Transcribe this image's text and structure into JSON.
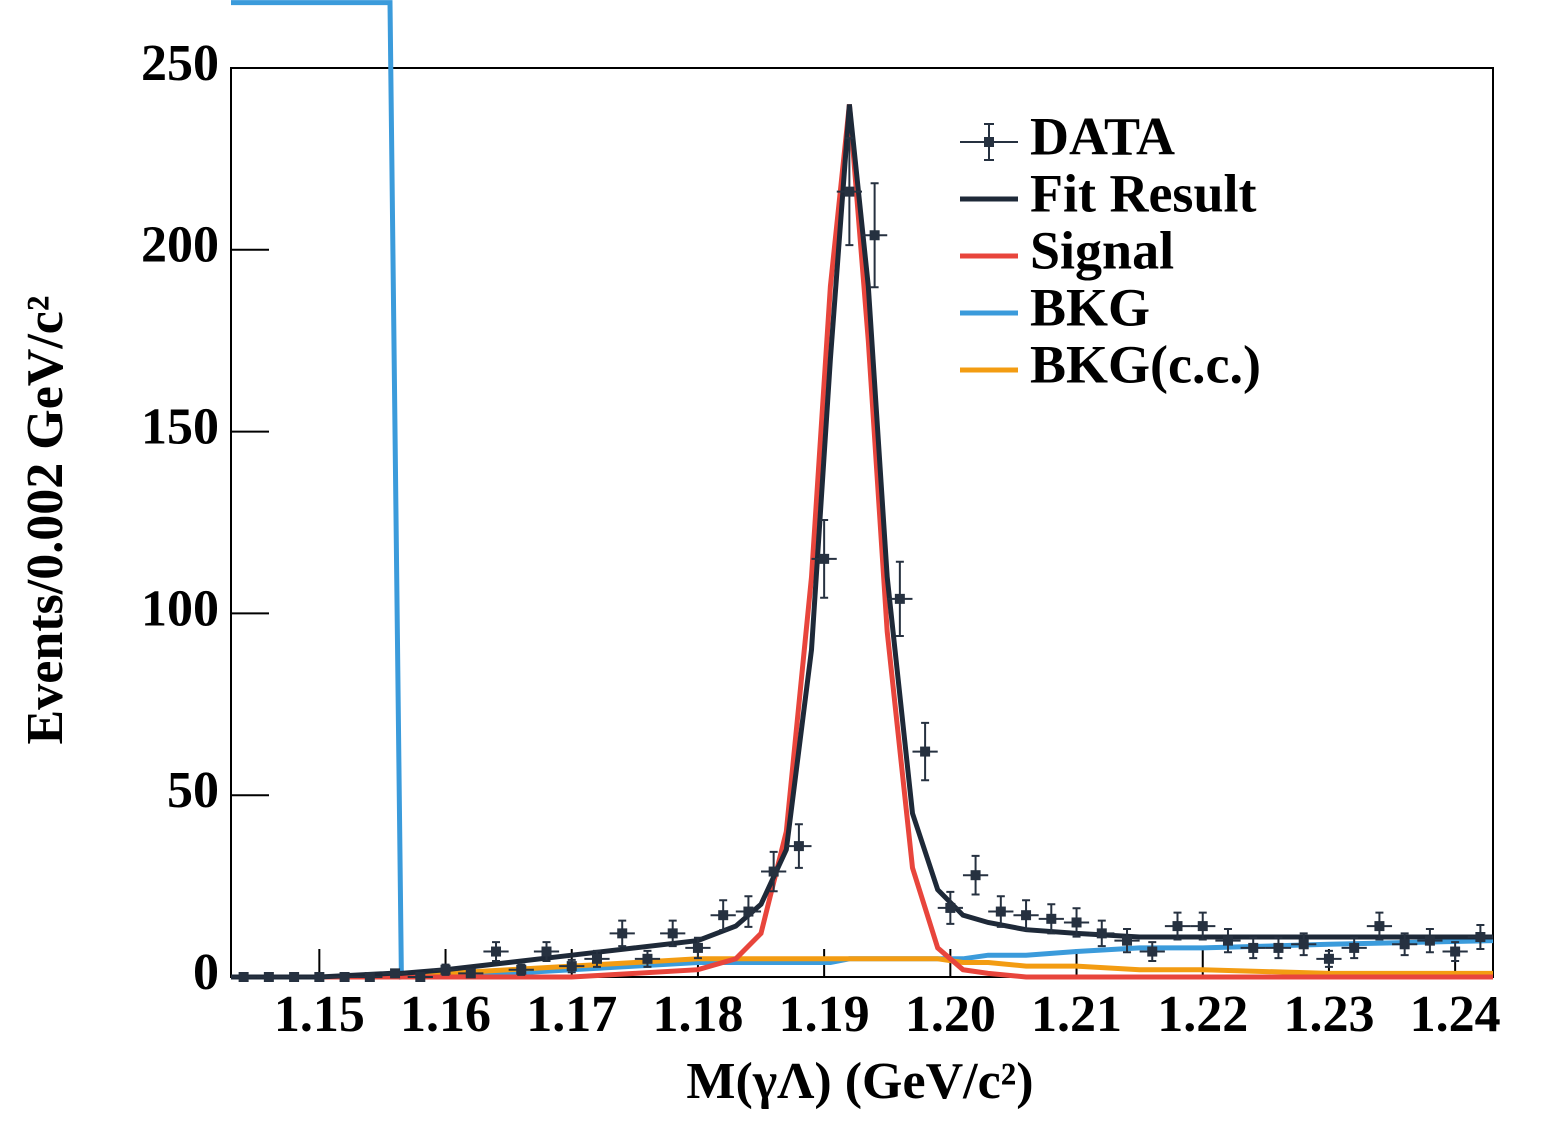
{
  "chart_data": {
    "type": "line",
    "xlabel": "M(γΛ) (GeV/c²)",
    "ylabel": "Events/0.002 GeV/c²",
    "xlim": [
      1.143,
      1.243
    ],
    "ylim": [
      0,
      250
    ],
    "xticks": [
      1.15,
      1.16,
      1.17,
      1.18,
      1.19,
      {
        "value": 1.2,
        "label": "1.20"
      },
      1.21,
      1.22,
      1.23,
      1.24
    ],
    "yticks": [
      0,
      50,
      100,
      150,
      200,
      250
    ],
    "legend": "top-right",
    "series": [
      {
        "name": "DATA",
        "kind": "points",
        "color": "#263140",
        "x": [
          1.144,
          1.146,
          1.148,
          1.15,
          1.152,
          1.154,
          1.156,
          1.158,
          1.16,
          1.162,
          1.164,
          1.166,
          1.168,
          1.17,
          1.172,
          1.174,
          1.176,
          1.178,
          1.18,
          1.182,
          1.184,
          1.186,
          1.188,
          1.19,
          1.192,
          1.194,
          1.196,
          1.198,
          1.2,
          1.202,
          1.204,
          1.206,
          1.208,
          1.21,
          1.212,
          1.214,
          1.216,
          1.218,
          1.22,
          1.222,
          1.224,
          1.226,
          1.228,
          1.23,
          1.232,
          1.234,
          1.236,
          1.238,
          1.24,
          1.242
        ],
        "values": [
          0,
          0,
          0,
          0,
          0,
          0,
          1,
          0,
          2,
          1,
          7,
          2,
          7,
          3,
          5,
          12,
          5,
          12,
          8,
          17,
          18,
          29,
          36,
          115,
          216,
          204,
          104,
          62,
          19,
          28,
          18,
          17,
          16,
          15,
          12,
          10,
          7,
          14,
          14,
          10,
          8,
          8,
          9,
          5,
          8,
          14,
          9,
          10,
          7,
          11
        ],
        "errors": [
          1,
          1,
          1,
          1,
          1,
          1,
          1,
          1,
          1.4,
          1,
          2.6,
          1.4,
          2.6,
          1.7,
          2.2,
          3.5,
          2.2,
          3.5,
          2.8,
          4.1,
          4.2,
          5.4,
          6,
          10.7,
          14.7,
          14.3,
          10.2,
          7.9,
          4.4,
          5.3,
          4.2,
          4.1,
          4,
          3.9,
          3.5,
          3.2,
          2.6,
          3.7,
          3.7,
          3.2,
          2.8,
          2.8,
          3,
          2.2,
          2.8,
          3.7,
          3,
          3.2,
          2.6,
          3.3
        ]
      },
      {
        "name": "Fit Result",
        "kind": "curve",
        "color": "#1e2938",
        "x": [
          1.143,
          1.15,
          1.1556,
          1.1565,
          1.16,
          1.165,
          1.17,
          1.175,
          1.18,
          1.183,
          1.185,
          1.187,
          1.189,
          1.1905,
          1.192,
          1.1935,
          1.195,
          1.197,
          1.199,
          1.201,
          1.203,
          1.206,
          1.21,
          1.215,
          1.22,
          1.23,
          1.243
        ],
        "values": [
          0,
          0,
          1,
          1,
          2,
          4,
          6,
          8,
          10,
          14,
          20,
          35,
          90,
          170,
          240,
          190,
          110,
          45,
          24,
          17,
          15,
          13,
          12,
          11,
          11,
          11,
          11
        ]
      },
      {
        "name": "Signal",
        "kind": "curve",
        "color": "#e8453c",
        "x": [
          1.143,
          1.15,
          1.1556,
          1.1565,
          1.16,
          1.165,
          1.17,
          1.175,
          1.18,
          1.183,
          1.185,
          1.187,
          1.189,
          1.1905,
          1.192,
          1.1935,
          1.195,
          1.197,
          1.199,
          1.201,
          1.203,
          1.206,
          1.21,
          1.215,
          1.22,
          1.23,
          1.243
        ],
        "values": [
          0,
          0,
          0,
          0,
          0,
          0,
          0,
          1,
          2,
          5,
          12,
          40,
          110,
          190,
          240,
          175,
          95,
          30,
          8,
          2,
          1,
          0,
          0,
          0,
          0,
          0,
          0
        ]
      },
      {
        "name": "BKG",
        "kind": "curve",
        "color": "#3b9bdb",
        "x": [
          1.143,
          1.15,
          1.1556,
          1.1565,
          1.16,
          1.165,
          1.17,
          1.175,
          1.18,
          1.183,
          1.185,
          1.187,
          1.189,
          1.1905,
          1.192,
          1.1935,
          1.195,
          1.197,
          1.199,
          1.201,
          1.203,
          1.206,
          1.21,
          1.215,
          1.22,
          1.23,
          1.243
        ],
        "values": [
          268,
          268,
          268,
          0,
          1,
          1,
          2,
          3,
          4,
          4,
          4,
          4,
          4,
          4,
          5,
          5,
          5,
          5,
          5,
          5,
          6,
          6,
          7,
          8,
          8,
          9,
          10
        ]
      },
      {
        "name": "BKG(c.c.)",
        "kind": "curve",
        "color": "#f39c12",
        "x": [
          1.143,
          1.15,
          1.1556,
          1.1565,
          1.16,
          1.165,
          1.17,
          1.175,
          1.18,
          1.183,
          1.185,
          1.187,
          1.189,
          1.1905,
          1.192,
          1.1935,
          1.195,
          1.197,
          1.199,
          1.201,
          1.203,
          1.206,
          1.21,
          1.215,
          1.22,
          1.23,
          1.243
        ],
        "values": [
          0,
          0,
          0,
          0,
          1,
          2,
          3,
          4,
          5,
          5,
          5,
          5,
          5,
          5,
          5,
          5,
          5,
          5,
          5,
          4,
          4,
          3,
          3,
          2,
          2,
          1,
          1
        ]
      }
    ]
  }
}
